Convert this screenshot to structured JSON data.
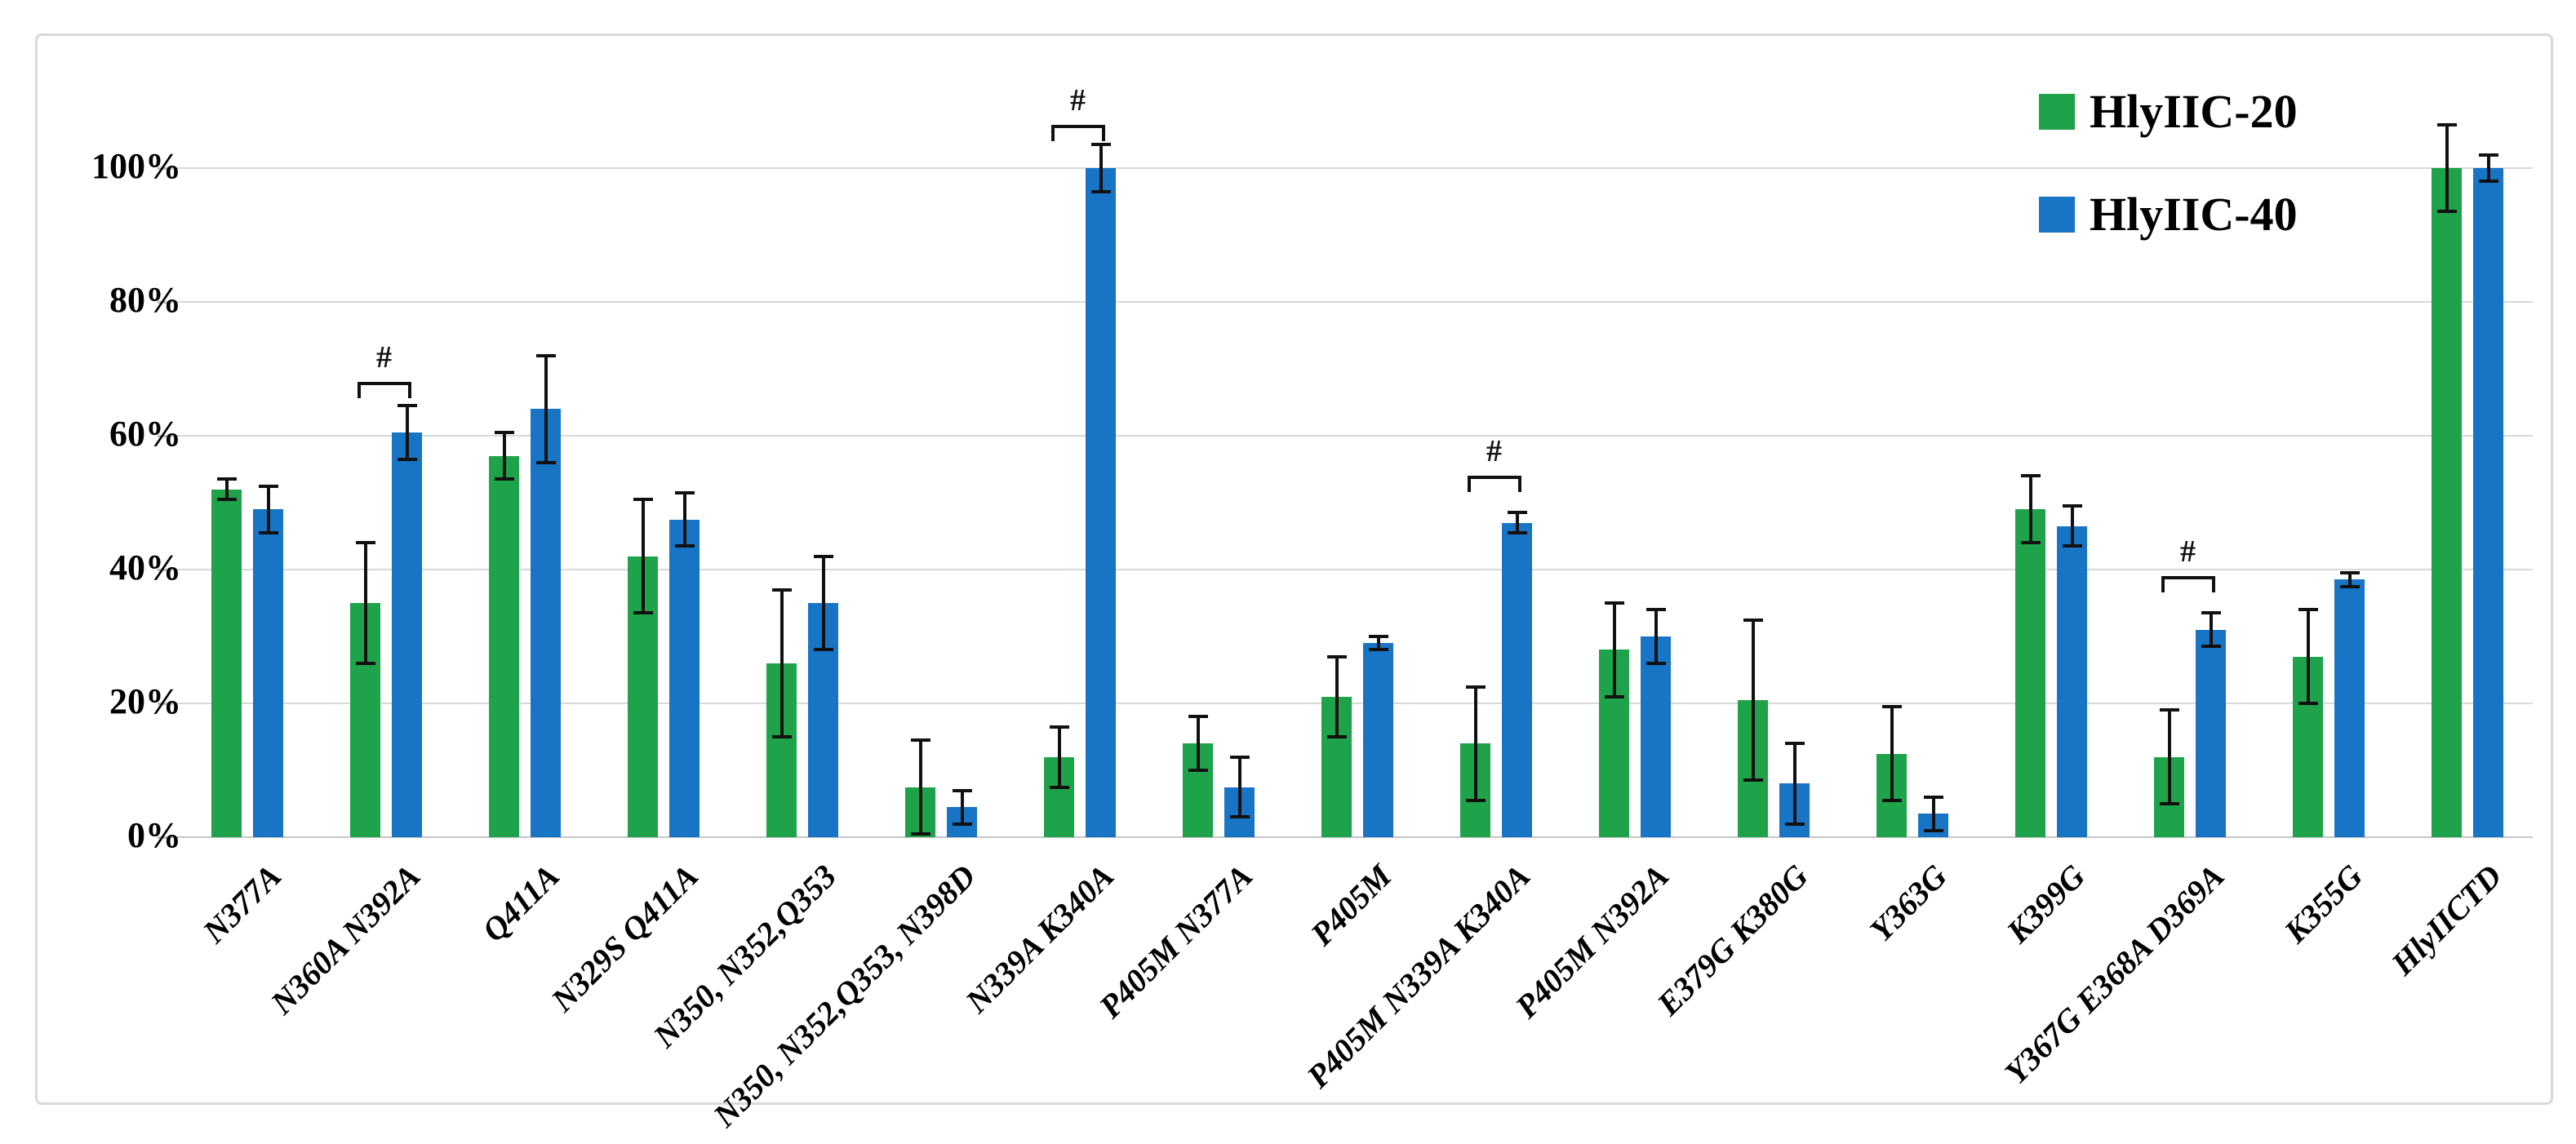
{
  "legend": {
    "items": [
      {
        "label": "HlyIIC-20",
        "color": "#1FA34A"
      },
      {
        "label": "HlyIIC-40",
        "color": "#1874C5"
      }
    ]
  },
  "significance_marker": "#",
  "axis": {
    "y_tick_labels": [
      "0%",
      "20%",
      "40%",
      "60%",
      "80%",
      "100%"
    ]
  },
  "chart_data": {
    "type": "bar",
    "title": "",
    "xlabel": "",
    "ylabel": "",
    "ylim": [
      0,
      100
    ],
    "y_tick_step": 20,
    "grid": true,
    "legend_position": "top-right",
    "categories": [
      "N377A",
      "N360A N392A",
      "Q411A",
      "N329S Q411A",
      "N350, N352,Q353",
      "N350, N352,Q353, N398D",
      "N339A K340A",
      "P405M N377A",
      "P405M",
      "P405M N339A K340A",
      "P405M N392A",
      "E379G K380G",
      "Y363G",
      "K399G",
      "Y367G E368A D369A",
      "K355G",
      "HlyIICTD"
    ],
    "series": [
      {
        "name": "HlyIIC-20",
        "color": "#1FA34A",
        "values": [
          52,
          35,
          57,
          42,
          26,
          7.5,
          12,
          14,
          21,
          14,
          28,
          20.5,
          12.5,
          49,
          12,
          27,
          100
        ],
        "errors": [
          1.5,
          9,
          3.5,
          8.5,
          11,
          7,
          4.5,
          4,
          6,
          8.5,
          7,
          12,
          7,
          5,
          7,
          7,
          6.5
        ]
      },
      {
        "name": "HlyIIC-40",
        "color": "#1874C5",
        "values": [
          49,
          60.5,
          64,
          47.5,
          35,
          4.5,
          100,
          7.5,
          29,
          47,
          30,
          8,
          3.5,
          46.5,
          31,
          38.5,
          100
        ],
        "errors": [
          3.5,
          4,
          8,
          4,
          7,
          2.5,
          3.5,
          4.5,
          1,
          1.5,
          4,
          6,
          2.5,
          3,
          2.5,
          1,
          2
        ]
      }
    ],
    "significance": [
      {
        "category_index": 1,
        "height_pct": 68
      },
      {
        "category_index": 6,
        "height_pct": 106.5
      },
      {
        "category_index": 9,
        "height_pct": 54
      },
      {
        "category_index": 14,
        "height_pct": 39
      }
    ]
  }
}
